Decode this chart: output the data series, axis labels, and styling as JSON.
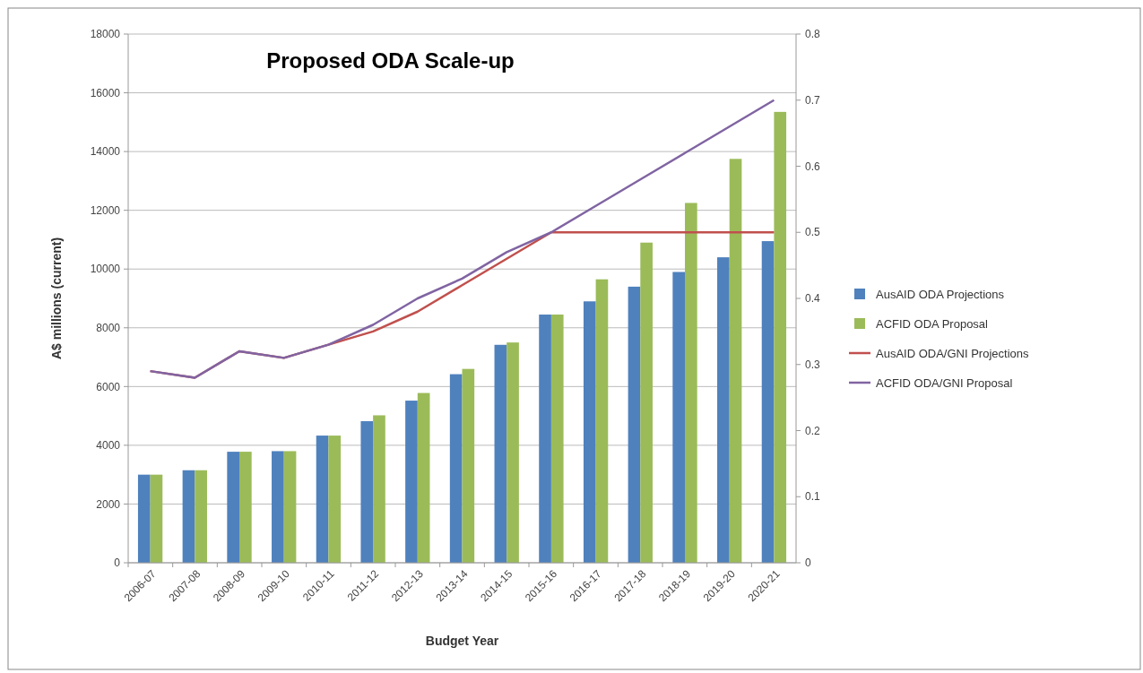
{
  "chart_data": {
    "type": "bar",
    "title": "Proposed ODA Scale-up",
    "xlabel": "Budget Year",
    "ylabel": "A$ millions (current)",
    "categories": [
      "2006-07",
      "2007-08",
      "2008-09",
      "2009-10",
      "2010-11",
      "2011-12",
      "2012-13",
      "2013-14",
      "2014-15",
      "2015-16",
      "2016-17",
      "2017-18",
      "2018-19",
      "2019-20",
      "2020-21"
    ],
    "series": [
      {
        "name": "AusAID ODA Projections",
        "color": "#4f81bd",
        "values": [
          3000,
          3150,
          3780,
          3800,
          4330,
          4820,
          5520,
          6420,
          7420,
          8450,
          8900,
          9400,
          9900,
          10400,
          10950
        ]
      },
      {
        "name": "ACFID ODA Proposal",
        "color": "#9bbb59",
        "values": [
          3000,
          3150,
          3780,
          3800,
          4330,
          5020,
          5780,
          6600,
          7500,
          8450,
          9650,
          10900,
          12250,
          13750,
          15350
        ]
      },
      {
        "name": "AusAID ODA/GNI Projections",
        "type": "line",
        "axis": "y2",
        "color": "#c0504d",
        "values": [
          0.29,
          0.28,
          0.32,
          0.31,
          0.33,
          0.35,
          0.38,
          0.42,
          0.46,
          0.5,
          0.5,
          0.5,
          0.5,
          0.5,
          0.5
        ]
      },
      {
        "name": "ACFID ODA/GNI Proposal",
        "type": "line",
        "axis": "y2",
        "color": "#8064a2",
        "values": [
          0.29,
          0.28,
          0.32,
          0.31,
          0.33,
          0.36,
          0.4,
          0.43,
          0.47,
          0.5,
          0.54,
          0.58,
          0.62,
          0.66,
          0.7
        ]
      }
    ],
    "ylim": [
      0,
      18000
    ],
    "yticks": [
      0,
      2000,
      4000,
      6000,
      8000,
      10000,
      12000,
      14000,
      16000,
      18000
    ],
    "y2lim": [
      0,
      0.8
    ],
    "y2ticks": [
      0,
      0.1,
      0.2,
      0.3,
      0.4,
      0.5,
      0.6,
      0.7,
      0.8
    ],
    "grid": "y",
    "legend": "right"
  }
}
